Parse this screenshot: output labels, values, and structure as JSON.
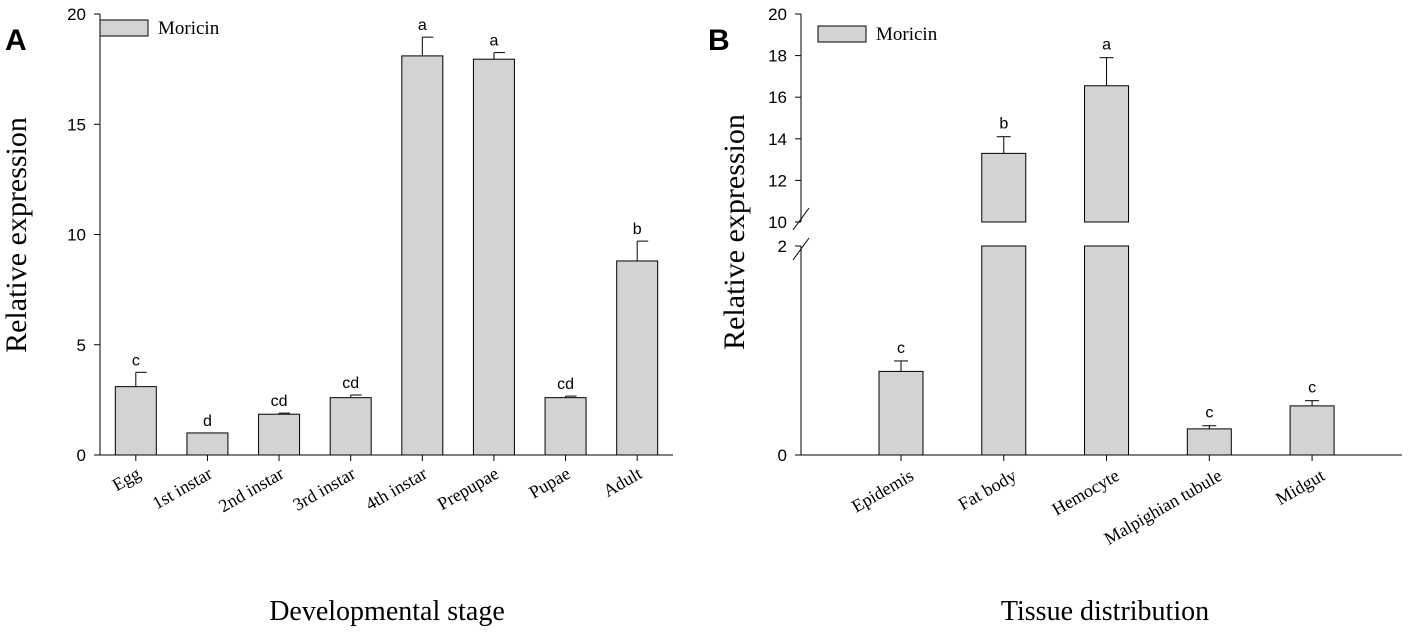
{
  "chart_data": [
    {
      "panel_label": "A",
      "type": "bar",
      "title": "",
      "xlabel": "Developmental stage",
      "ylabel": "Relative expression",
      "legend": [
        "Moricin"
      ],
      "legend_position": "top-left",
      "categories": [
        "Egg",
        "1st instar",
        "2nd instar",
        "3rd instar",
        "4th instar",
        "Prepupae",
        "Pupae",
        "Adult"
      ],
      "values": [
        3.1,
        1.0,
        1.85,
        2.6,
        18.1,
        17.95,
        2.6,
        8.8
      ],
      "errors": [
        0.65,
        0.0,
        0.05,
        0.12,
        0.85,
        0.3,
        0.07,
        0.9
      ],
      "significance": [
        "c",
        "d",
        "cd",
        "cd",
        "a",
        "a",
        "cd",
        "b"
      ],
      "ylim": [
        0,
        20
      ],
      "yticks": [
        "0",
        "5",
        "10",
        "15",
        "20"
      ]
    },
    {
      "panel_label": "B",
      "type": "bar",
      "title": "",
      "xlabel": "Tissue distribution",
      "ylabel": "Relative expression",
      "legend": [
        "Moricin"
      ],
      "legend_position": "top-left",
      "categories": [
        "Epidemis",
        "Fat body",
        "Hemocyte",
        "Malpighian tubule",
        "Midgut"
      ],
      "values": [
        0.8,
        13.3,
        16.55,
        0.25,
        0.47
      ],
      "errors": [
        0.1,
        0.8,
        1.35,
        0.03,
        0.05
      ],
      "significance": [
        "c",
        "b",
        "a",
        "c",
        "c"
      ],
      "axis_break": {
        "lower_range": [
          0,
          2
        ],
        "upper_range": [
          10,
          20
        ]
      },
      "yticks_upper": [
        "10",
        "12",
        "14",
        "16",
        "18",
        "20"
      ],
      "yticks_lower": [
        "0",
        "2"
      ]
    }
  ]
}
